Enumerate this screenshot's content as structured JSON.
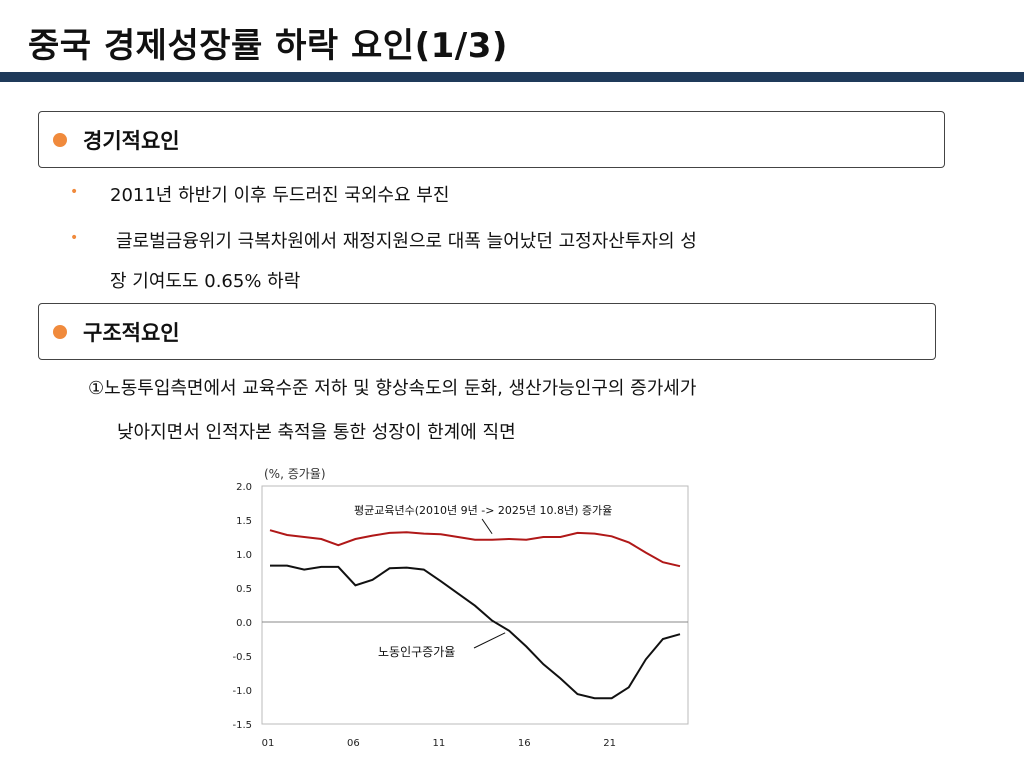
{
  "page": {
    "title": "중국 경제성장률 하락 요인(1/3)"
  },
  "section1": {
    "label": "경기적요인",
    "bullets": [
      "2011년 하반기 이후 두드러진 국외수요 부진",
      "글로벌금융위기 극복차원에서 재정지원으로 대폭 늘어났던 고정자산투자의 성",
      "장 기여도도 0.65% 하락"
    ]
  },
  "section2": {
    "label": "구조적요인",
    "text_line1": "①노동투입측면에서 교육수준 저하 및 향상속도의 둔화, 생산가능인구의 증가세가",
    "text_line2": "낮아지면서 인적자본 축적을 통한 성장이 한계에 직면"
  },
  "chart_data": {
    "type": "line",
    "unit_label": "(%, 증가율)",
    "x": [
      "01",
      "02",
      "03",
      "04",
      "05",
      "06",
      "07",
      "08",
      "09",
      "10",
      "11",
      "12",
      "13",
      "14",
      "15",
      "16",
      "17",
      "18",
      "19",
      "20",
      "21",
      "22",
      "23",
      "24",
      "25"
    ],
    "x_tick_labels": [
      "01",
      "06",
      "11",
      "16",
      "21"
    ],
    "y_ticks": [
      "2.0",
      "1.5",
      "1.0",
      "0.5",
      "0.0",
      "-0.5",
      "-1.0",
      "-1.5"
    ],
    "ylim": [
      -1.5,
      2.0
    ],
    "series": [
      {
        "name": "평균교육년수(2010년 9년 -> 2025년 10.8년) 증가율",
        "color": "#b01818",
        "values": [
          1.35,
          1.28,
          1.25,
          1.22,
          1.13,
          1.22,
          1.27,
          1.31,
          1.32,
          1.3,
          1.29,
          1.25,
          1.21,
          1.21,
          1.22,
          1.21,
          1.25,
          1.25,
          1.31,
          1.3,
          1.26,
          1.17,
          1.02,
          0.88,
          0.82
        ]
      },
      {
        "name": "노동인구증가율",
        "color": "#111111",
        "values": [
          0.83,
          0.83,
          0.77,
          0.81,
          0.81,
          0.54,
          0.62,
          0.79,
          0.8,
          0.77,
          0.6,
          0.42,
          0.24,
          0.02,
          -0.13,
          -0.36,
          -0.62,
          -0.83,
          -1.06,
          -1.12,
          -1.12,
          -0.96,
          -0.55,
          -0.25,
          -0.18
        ]
      }
    ],
    "annotations": [
      {
        "text": "평균교육년수(2010년 9년 -> 2025년 10.8년) 증가율",
        "x": "14",
        "y": 1.21
      },
      {
        "text": "노동인구증가율",
        "x": "15",
        "y": -0.1
      }
    ]
  }
}
